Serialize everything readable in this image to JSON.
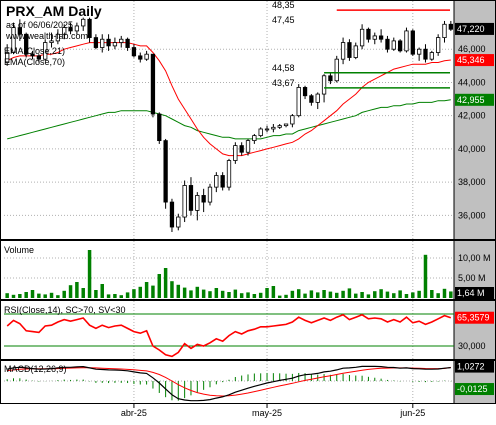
{
  "colors": {
    "up": "#ffffff",
    "down": "#000000",
    "candle_border": "#000000",
    "ema21": "#ff0000",
    "ema70": "#008000",
    "volume": "#008000",
    "rsi": "#ff0000",
    "macd": "#000000",
    "signal": "#ff0000",
    "hist": "#008000",
    "axis_bg": "#c0c0c0",
    "box_dark": "#000000",
    "box_red": "#ff0000",
    "box_green": "#008000",
    "level_red": "#ff0000",
    "level_green": "#008000"
  },
  "chart_data": [
    {
      "type": "candlestick",
      "title": "PRX_AM Daily",
      "subtitle": "as of 06/06/2025",
      "watermark": "www.wealth-lab.com",
      "x_ticks": [
        "abr-25",
        "may-25",
        "jun-25"
      ],
      "x_tick_index": [
        20,
        41,
        64
      ],
      "y_ticks": [
        "36,000",
        "38,000",
        "40,000",
        "42,000",
        "44,000",
        "46,000"
      ],
      "y_tick_values": [
        36,
        38,
        40,
        42,
        44,
        46
      ],
      "y_range": [
        35,
        48.6
      ],
      "last_price_label": "47,220",
      "last_price": 47.22,
      "series": [
        {
          "name": "EMA(Close,21)",
          "last_label": "45,346",
          "last_value": 45.346
        },
        {
          "name": "EMA(Close,70)",
          "last_label": "42,955",
          "last_value": 42.955
        }
      ],
      "levels": [
        {
          "label": "48,35",
          "value": 48.35
        },
        {
          "label": "47,45",
          "value": 47.45
        },
        {
          "label": "44,58",
          "value": 44.58
        },
        {
          "label": "43,67",
          "value": 43.67
        }
      ],
      "candles": [
        [
          45.2,
          46.3,
          45.0,
          45.8
        ],
        [
          45.8,
          47.6,
          45.7,
          47.3
        ],
        [
          47.3,
          47.8,
          46.5,
          46.9
        ],
        [
          46.9,
          47.0,
          45.5,
          45.7
        ],
        [
          45.7,
          45.9,
          45.4,
          45.6
        ],
        [
          45.6,
          45.7,
          45.2,
          45.4
        ],
        [
          45.4,
          46.6,
          45.3,
          46.4
        ],
        [
          46.4,
          47.0,
          46.1,
          46.5
        ],
        [
          46.5,
          47.2,
          46.3,
          46.9
        ],
        [
          46.9,
          47.5,
          46.6,
          47.3
        ],
        [
          47.3,
          47.6,
          46.9,
          47.1
        ],
        [
          47.1,
          47.6,
          46.9,
          47.4
        ],
        [
          47.4,
          47.9,
          47.1,
          47.8
        ],
        [
          47.8,
          47.9,
          46.4,
          46.7
        ],
        [
          46.7,
          46.9,
          46.0,
          46.1
        ],
        [
          46.1,
          46.9,
          45.8,
          46.6
        ],
        [
          46.6,
          46.9,
          45.9,
          46.2
        ],
        [
          46.2,
          46.7,
          46.0,
          46.4
        ],
        [
          46.4,
          46.8,
          46.1,
          46.6
        ],
        [
          46.6,
          46.7,
          45.9,
          46.1
        ],
        [
          46.1,
          46.3,
          45.5,
          45.6
        ],
        [
          45.6,
          45.8,
          45.2,
          45.4
        ],
        [
          45.4,
          45.9,
          45.3,
          45.7
        ],
        [
          45.7,
          45.7,
          41.9,
          42.1
        ],
        [
          42.1,
          42.2,
          40.3,
          40.5
        ],
        [
          40.5,
          40.6,
          36.4,
          36.8
        ],
        [
          36.8,
          37.0,
          35.0,
          35.3
        ],
        [
          35.3,
          36.1,
          35.1,
          35.9
        ],
        [
          35.9,
          38.1,
          35.6,
          37.8
        ],
        [
          37.8,
          38.3,
          36.0,
          36.3
        ],
        [
          36.3,
          37.4,
          35.7,
          37.2
        ],
        [
          37.2,
          37.6,
          36.2,
          36.8
        ],
        [
          36.8,
          37.9,
          36.6,
          37.7
        ],
        [
          37.7,
          38.6,
          37.4,
          38.4
        ],
        [
          38.4,
          38.6,
          37.5,
          37.7
        ],
        [
          37.7,
          39.4,
          37.5,
          39.3
        ],
        [
          39.3,
          40.4,
          39.1,
          40.2
        ],
        [
          40.2,
          40.4,
          39.6,
          39.8
        ],
        [
          39.8,
          40.6,
          39.6,
          40.5
        ],
        [
          40.5,
          40.9,
          40.3,
          40.8
        ],
        [
          40.8,
          41.3,
          40.7,
          41.2
        ],
        [
          41.2,
          41.4,
          41.0,
          41.2
        ],
        [
          41.2,
          41.5,
          41.0,
          41.3
        ],
        [
          41.3,
          41.5,
          41.2,
          41.4
        ],
        [
          41.4,
          41.5,
          41.3,
          41.5
        ],
        [
          41.5,
          42.1,
          41.3,
          42.0
        ],
        [
          42.0,
          43.9,
          41.9,
          43.7
        ],
        [
          43.7,
          43.8,
          43.0,
          43.2
        ],
        [
          43.2,
          43.3,
          42.6,
          42.8
        ],
        [
          42.8,
          43.4,
          42.4,
          43.3
        ],
        [
          43.3,
          44.5,
          42.8,
          44.4
        ],
        [
          44.4,
          44.6,
          43.9,
          44.1
        ],
        [
          44.1,
          45.6,
          44.0,
          45.4
        ],
        [
          45.4,
          46.7,
          45.1,
          46.4
        ],
        [
          46.4,
          46.6,
          45.3,
          45.5
        ],
        [
          45.5,
          46.4,
          45.4,
          46.2
        ],
        [
          46.2,
          47.5,
          46.0,
          47.2
        ],
        [
          47.2,
          47.3,
          46.4,
          46.6
        ],
        [
          46.6,
          47.0,
          46.3,
          46.8
        ],
        [
          46.8,
          47.2,
          46.4,
          46.6
        ],
        [
          46.6,
          46.8,
          45.8,
          46.0
        ],
        [
          46.0,
          46.7,
          45.9,
          46.5
        ],
        [
          46.5,
          46.6,
          45.8,
          45.9
        ],
        [
          45.9,
          47.3,
          45.8,
          47.1
        ],
        [
          47.1,
          47.2,
          45.6,
          45.7
        ],
        [
          45.7,
          46.1,
          45.3,
          46.0
        ],
        [
          46.0,
          46.3,
          45.2,
          45.4
        ],
        [
          45.4,
          45.9,
          45.3,
          45.8
        ],
        [
          45.8,
          46.9,
          45.6,
          46.7
        ],
        [
          46.7,
          47.7,
          46.4,
          47.5
        ],
        [
          47.5,
          47.7,
          47.1,
          47.2
        ]
      ],
      "ema21": [
        45.3,
        45.5,
        45.6,
        45.6,
        45.6,
        45.6,
        45.7,
        45.7,
        45.8,
        46.0,
        46.1,
        46.2,
        46.3,
        46.4,
        46.4,
        46.4,
        46.4,
        46.4,
        46.4,
        46.4,
        46.3,
        46.2,
        46.2,
        45.8,
        45.3,
        44.7,
        43.8,
        43.0,
        42.4,
        41.8,
        41.2,
        40.7,
        40.3,
        40.0,
        39.7,
        39.6,
        39.6,
        39.6,
        39.7,
        39.8,
        39.9,
        40.0,
        40.1,
        40.2,
        40.3,
        40.4,
        40.6,
        40.9,
        41.1,
        41.4,
        41.7,
        42.0,
        42.3,
        42.7,
        43.0,
        43.3,
        43.7,
        44.0,
        44.2,
        44.4,
        44.6,
        44.8,
        44.9,
        45.0,
        45.1,
        45.1,
        45.1,
        45.2,
        45.2,
        45.3,
        45.35
      ],
      "ema70": [
        40.6,
        40.7,
        40.8,
        40.9,
        41.0,
        41.1,
        41.2,
        41.3,
        41.4,
        41.5,
        41.6,
        41.7,
        41.8,
        41.9,
        42.0,
        42.1,
        42.2,
        42.2,
        42.3,
        42.3,
        42.3,
        42.3,
        42.3,
        42.2,
        42.1,
        42.0,
        41.8,
        41.6,
        41.4,
        41.3,
        41.1,
        41.0,
        40.9,
        40.8,
        40.7,
        40.7,
        40.6,
        40.6,
        40.6,
        40.6,
        40.6,
        40.7,
        40.8,
        40.8,
        40.9,
        40.9,
        41.1,
        41.2,
        41.3,
        41.4,
        41.5,
        41.6,
        41.7,
        41.8,
        41.9,
        42.0,
        42.2,
        42.3,
        42.4,
        42.5,
        42.5,
        42.6,
        42.6,
        42.7,
        42.7,
        42.8,
        42.8,
        42.8,
        42.9,
        42.9,
        42.955
      ]
    },
    {
      "type": "bar",
      "title": "Volume",
      "y_ticks": [
        "5,00 M",
        "10,00 M"
      ],
      "y_tick_values": [
        5,
        10
      ],
      "y_range": [
        0,
        13
      ],
      "last_label": "1,64 M",
      "values": [
        1.2,
        0.8,
        1.0,
        1.5,
        2.0,
        1.1,
        0.9,
        1.3,
        0.7,
        1.8,
        3.2,
        4.0,
        2.5,
        12.0,
        2.0,
        3.5,
        0.9,
        1.0,
        0.7,
        1.4,
        2.2,
        2.8,
        4.0,
        3.1,
        6.0,
        7.5,
        4.2,
        3.3,
        2.6,
        1.9,
        2.8,
        2.1,
        1.7,
        2.5,
        1.8,
        1.5,
        2.1,
        1.2,
        1.4,
        1.0,
        1.3,
        2.5,
        3.0,
        0.6,
        0.8,
        1.8,
        2.2,
        1.1,
        1.9,
        1.4,
        2.0,
        1.6,
        1.3,
        1.8,
        2.4,
        1.1,
        1.5,
        0.9,
        1.7,
        2.2,
        1.6,
        1.2,
        1.9,
        1.0,
        1.4,
        1.8,
        10.8,
        2.0,
        1.2,
        2.3,
        1.64
      ]
    },
    {
      "type": "line",
      "title": "RSI(Close,14), SC>70, SV<30",
      "y_ticks": [
        "30,000"
      ],
      "y_tick_values": [
        30
      ],
      "bands": [
        30,
        70
      ],
      "y_range": [
        15,
        85
      ],
      "last_label": "65,3579",
      "values": [
        55,
        62,
        58,
        49,
        48,
        47,
        55,
        56,
        60,
        63,
        61,
        63,
        65,
        56,
        52,
        56,
        53,
        55,
        56,
        52,
        48,
        46,
        49,
        30,
        25,
        19,
        17,
        22,
        33,
        27,
        32,
        30,
        34,
        39,
        36,
        43,
        48,
        45,
        49,
        51,
        54,
        54,
        55,
        56,
        57,
        60,
        66,
        62,
        59,
        62,
        65,
        62,
        66,
        69,
        63,
        66,
        69,
        64,
        65,
        64,
        60,
        63,
        60,
        66,
        59,
        61,
        57,
        60,
        64,
        68,
        65.36
      ]
    },
    {
      "type": "line",
      "title": "MACD(12,26,9)",
      "y_range": [
        -1.6,
        1.3
      ],
      "last_label": "1,0272",
      "last_hist_label": "-0,0125",
      "macd": [
        0.9,
        1.0,
        1.05,
        1.0,
        0.95,
        0.9,
        0.92,
        0.95,
        1.0,
        1.05,
        1.05,
        1.08,
        1.1,
        1.0,
        0.9,
        0.88,
        0.85,
        0.84,
        0.82,
        0.78,
        0.7,
        0.62,
        0.58,
        0.25,
        -0.15,
        -0.6,
        -1.05,
        -1.35,
        -1.45,
        -1.5,
        -1.5,
        -1.48,
        -1.42,
        -1.3,
        -1.2,
        -1.05,
        -0.85,
        -0.7,
        -0.55,
        -0.4,
        -0.28,
        -0.15,
        -0.05,
        0.05,
        0.13,
        0.22,
        0.38,
        0.48,
        0.52,
        0.58,
        0.7,
        0.75,
        0.85,
        0.98,
        1.0,
        1.05,
        1.12,
        1.12,
        1.12,
        1.1,
        1.05,
        1.03,
        0.98,
        1.0,
        0.95,
        0.93,
        0.9,
        0.9,
        0.92,
        0.98,
        1.027
      ],
      "signal": [
        0.8,
        0.85,
        0.9,
        0.92,
        0.93,
        0.93,
        0.93,
        0.94,
        0.95,
        0.97,
        0.99,
        1.0,
        1.02,
        1.02,
        1.0,
        0.98,
        0.96,
        0.94,
        0.92,
        0.89,
        0.86,
        0.81,
        0.77,
        0.66,
        0.5,
        0.28,
        0.0,
        -0.28,
        -0.52,
        -0.72,
        -0.88,
        -1.0,
        -1.08,
        -1.12,
        -1.14,
        -1.12,
        -1.07,
        -1.0,
        -0.91,
        -0.81,
        -0.7,
        -0.59,
        -0.48,
        -0.37,
        -0.27,
        -0.17,
        -0.06,
        0.05,
        0.14,
        0.23,
        0.32,
        0.41,
        0.5,
        0.59,
        0.67,
        0.75,
        0.83,
        0.89,
        0.94,
        0.97,
        0.99,
        1.0,
        1.0,
        1.0,
        0.99,
        0.98,
        0.96,
        0.95,
        0.95,
        0.96,
        1.04
      ]
    }
  ]
}
